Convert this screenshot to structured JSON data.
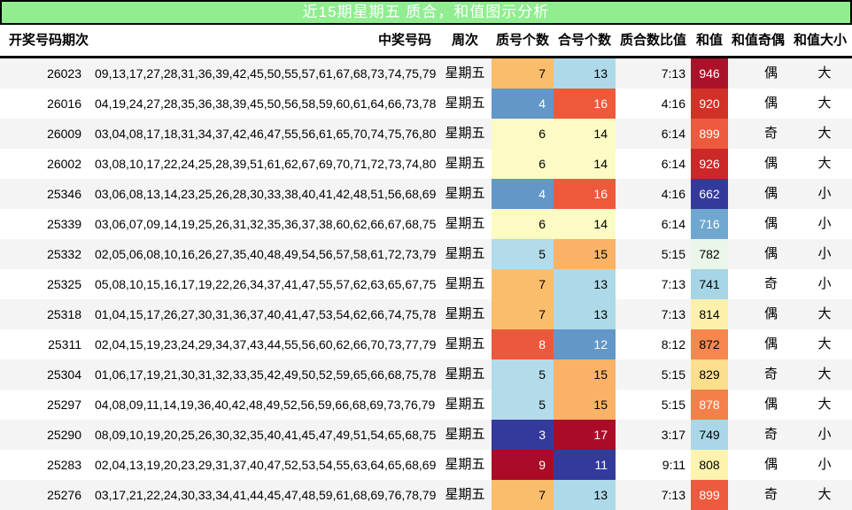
{
  "title": "近15期星期五 质合，和值图示分析",
  "colors": {
    "title_bg": "#90ee90",
    "title_text": "#ffffff",
    "row_stripe": "#f4f4f4",
    "row_base": "#ffffff",
    "border": "#000000"
  },
  "heat": {
    "counts": {
      "3": {
        "bg": "#343a9b",
        "fg": "#ffffff"
      },
      "4": {
        "bg": "#6397c8",
        "fg": "#ffffff"
      },
      "5": {
        "bg": "#b3dbe9",
        "fg": "#000000"
      },
      "6": {
        "bg": "#fbfbc3",
        "fg": "#000000"
      },
      "7": {
        "bg": "#fabd6c",
        "fg": "#000000"
      },
      "8": {
        "bg": "#ec583c",
        "fg": "#ffffff"
      },
      "9": {
        "bg": "#aa0c28",
        "fg": "#ffffff"
      },
      "11": {
        "bg": "#343a9b",
        "fg": "#ffffff"
      },
      "12": {
        "bg": "#6397c8",
        "fg": "#ffffff"
      },
      "13": {
        "bg": "#aed9e8",
        "fg": "#000000"
      },
      "14": {
        "bg": "#fbfbc3",
        "fg": "#000000"
      },
      "15": {
        "bg": "#fab366",
        "fg": "#000000"
      },
      "16": {
        "bg": "#ee593c",
        "fg": "#ffffff"
      },
      "17": {
        "bg": "#aa0c28",
        "fg": "#ffffff"
      }
    },
    "sums": {
      "946": {
        "bg": "#ab122a",
        "fg": "#ffffff"
      },
      "920": {
        "bg": "#d23127",
        "fg": "#ffffff"
      },
      "899": {
        "bg": "#ee5a3d",
        "fg": "#ffffff"
      },
      "926": {
        "bg": "#cb2827",
        "fg": "#ffffff"
      },
      "662": {
        "bg": "#343a9b",
        "fg": "#ffffff"
      },
      "716": {
        "bg": "#6fa7d0",
        "fg": "#ffffff"
      },
      "782": {
        "bg": "#e9f6e9",
        "fg": "#000000"
      },
      "741": {
        "bg": "#a6d5e5",
        "fg": "#000000"
      },
      "814": {
        "bg": "#fdf0aa",
        "fg": "#000000"
      },
      "872": {
        "bg": "#f6874e",
        "fg": "#000000"
      },
      "829": {
        "bg": "#fbdf8d",
        "fg": "#000000"
      },
      "878": {
        "bg": "#f57f49",
        "fg": "#ffffff"
      },
      "749": {
        "bg": "#aad7e7",
        "fg": "#000000"
      },
      "808": {
        "bg": "#fdf3ae",
        "fg": "#000000"
      }
    }
  },
  "chart_data": {
    "type": "table",
    "title": "近15期星期五 质合，和值图示分析",
    "columns": [
      "开奖号码期次",
      "中奖号码",
      "周次",
      "质号个数",
      "合号个数",
      "质合数比值",
      "和值",
      "和值奇偶",
      "和值大小"
    ],
    "rows": [
      {
        "period": "26023",
        "numbers": "09,13,17,27,28,31,36,39,42,45,50,55,57,61,67,68,73,74,75,79",
        "week": "星期五",
        "prime": "7",
        "composite": "13",
        "ratio": "7:13",
        "sum": "946",
        "parity": "偶",
        "size": "大"
      },
      {
        "period": "26016",
        "numbers": "04,19,24,27,28,35,36,38,39,45,50,56,58,59,60,61,64,66,73,78",
        "week": "星期五",
        "prime": "4",
        "composite": "16",
        "ratio": "4:16",
        "sum": "920",
        "parity": "偶",
        "size": "大"
      },
      {
        "period": "26009",
        "numbers": "03,04,08,17,18,31,34,37,42,46,47,55,56,61,65,70,74,75,76,80",
        "week": "星期五",
        "prime": "6",
        "composite": "14",
        "ratio": "6:14",
        "sum": "899",
        "parity": "奇",
        "size": "大"
      },
      {
        "period": "26002",
        "numbers": "03,08,10,17,22,24,25,28,39,51,61,62,67,69,70,71,72,73,74,80",
        "week": "星期五",
        "prime": "6",
        "composite": "14",
        "ratio": "6:14",
        "sum": "926",
        "parity": "偶",
        "size": "大"
      },
      {
        "period": "25346",
        "numbers": "03,06,08,13,14,23,25,26,28,30,33,38,40,41,42,48,51,56,68,69",
        "week": "星期五",
        "prime": "4",
        "composite": "16",
        "ratio": "4:16",
        "sum": "662",
        "parity": "偶",
        "size": "小"
      },
      {
        "period": "25339",
        "numbers": "03,06,07,09,14,19,25,26,31,32,35,36,37,38,60,62,66,67,68,75",
        "week": "星期五",
        "prime": "6",
        "composite": "14",
        "ratio": "6:14",
        "sum": "716",
        "parity": "偶",
        "size": "小"
      },
      {
        "period": "25332",
        "numbers": "02,05,06,08,10,16,26,27,35,40,48,49,54,56,57,58,61,72,73,79",
        "week": "星期五",
        "prime": "5",
        "composite": "15",
        "ratio": "5:15",
        "sum": "782",
        "parity": "偶",
        "size": "小"
      },
      {
        "period": "25325",
        "numbers": "05,08,10,15,16,17,19,22,26,34,37,41,47,55,57,62,63,65,67,75",
        "week": "星期五",
        "prime": "7",
        "composite": "13",
        "ratio": "7:13",
        "sum": "741",
        "parity": "奇",
        "size": "小"
      },
      {
        "period": "25318",
        "numbers": "01,04,15,17,26,27,30,31,36,37,40,41,47,53,54,62,66,74,75,78",
        "week": "星期五",
        "prime": "7",
        "composite": "13",
        "ratio": "7:13",
        "sum": "814",
        "parity": "偶",
        "size": "大"
      },
      {
        "period": "25311",
        "numbers": "02,04,15,19,23,24,29,34,37,43,44,55,56,60,62,66,70,73,77,79",
        "week": "星期五",
        "prime": "8",
        "composite": "12",
        "ratio": "8:12",
        "sum": "872",
        "parity": "偶",
        "size": "大"
      },
      {
        "period": "25304",
        "numbers": "01,06,17,19,21,30,31,32,33,35,42,49,50,52,59,65,66,68,75,78",
        "week": "星期五",
        "prime": "5",
        "composite": "15",
        "ratio": "5:15",
        "sum": "829",
        "parity": "奇",
        "size": "大"
      },
      {
        "period": "25297",
        "numbers": "04,08,09,11,14,19,36,40,42,48,49,52,56,59,66,68,69,73,76,79",
        "week": "星期五",
        "prime": "5",
        "composite": "15",
        "ratio": "5:15",
        "sum": "878",
        "parity": "偶",
        "size": "大"
      },
      {
        "period": "25290",
        "numbers": "08,09,10,19,20,25,26,30,32,35,40,41,45,47,49,51,54,65,68,75",
        "week": "星期五",
        "prime": "3",
        "composite": "17",
        "ratio": "3:17",
        "sum": "749",
        "parity": "奇",
        "size": "小"
      },
      {
        "period": "25283",
        "numbers": "02,04,13,19,20,23,29,31,37,40,47,52,53,54,55,63,64,65,68,69",
        "week": "星期五",
        "prime": "9",
        "composite": "11",
        "ratio": "9:11",
        "sum": "808",
        "parity": "偶",
        "size": "小"
      },
      {
        "period": "25276",
        "numbers": "03,17,21,22,24,30,33,34,41,44,45,47,48,59,61,68,69,76,78,79",
        "week": "星期五",
        "prime": "7",
        "composite": "13",
        "ratio": "7:13",
        "sum": "899",
        "parity": "奇",
        "size": "大"
      }
    ]
  }
}
